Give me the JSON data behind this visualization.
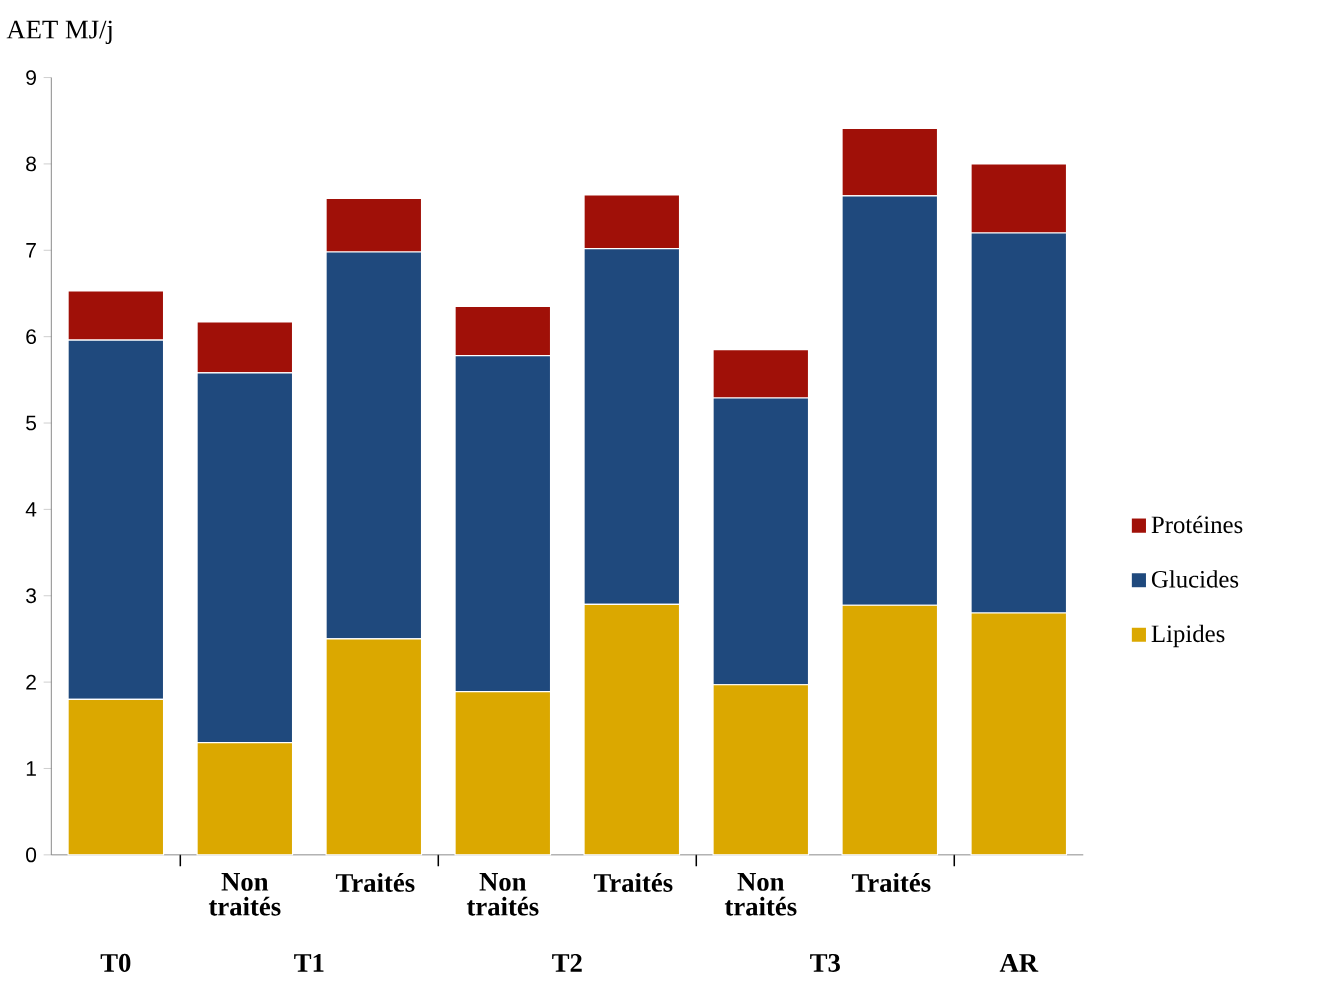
{
  "chart_data": {
    "type": "bar",
    "stacked": true,
    "ylabel": "AET  MJ/j",
    "categories": [
      null,
      "Non traités",
      "Traités",
      "Non traités",
      "Traités",
      "Non traités",
      "Traités",
      null
    ],
    "annotations": [
      "T0",
      "T1",
      "T2",
      "T3",
      "AR"
    ],
    "series": [
      {
        "name": "Lipides",
        "color": "#dba800",
        "values": [
          1.8,
          1.3,
          2.5,
          1.89,
          2.9,
          1.97,
          2.89,
          2.8
        ]
      },
      {
        "name": "Glucides",
        "color": "#1f497d",
        "values": [
          4.16,
          4.28,
          4.48,
          3.89,
          4.12,
          3.32,
          4.74,
          4.4
        ]
      },
      {
        "name": "Protéines",
        "color": "#a01008",
        "values": [
          0.57,
          0.59,
          0.62,
          0.57,
          0.62,
          0.56,
          0.78,
          0.8
        ]
      }
    ],
    "ylim": [
      0,
      9
    ],
    "yticks": [
      0,
      1,
      2,
      3,
      4,
      5,
      6,
      7,
      8,
      9
    ],
    "legend": "right",
    "grid": false
  }
}
